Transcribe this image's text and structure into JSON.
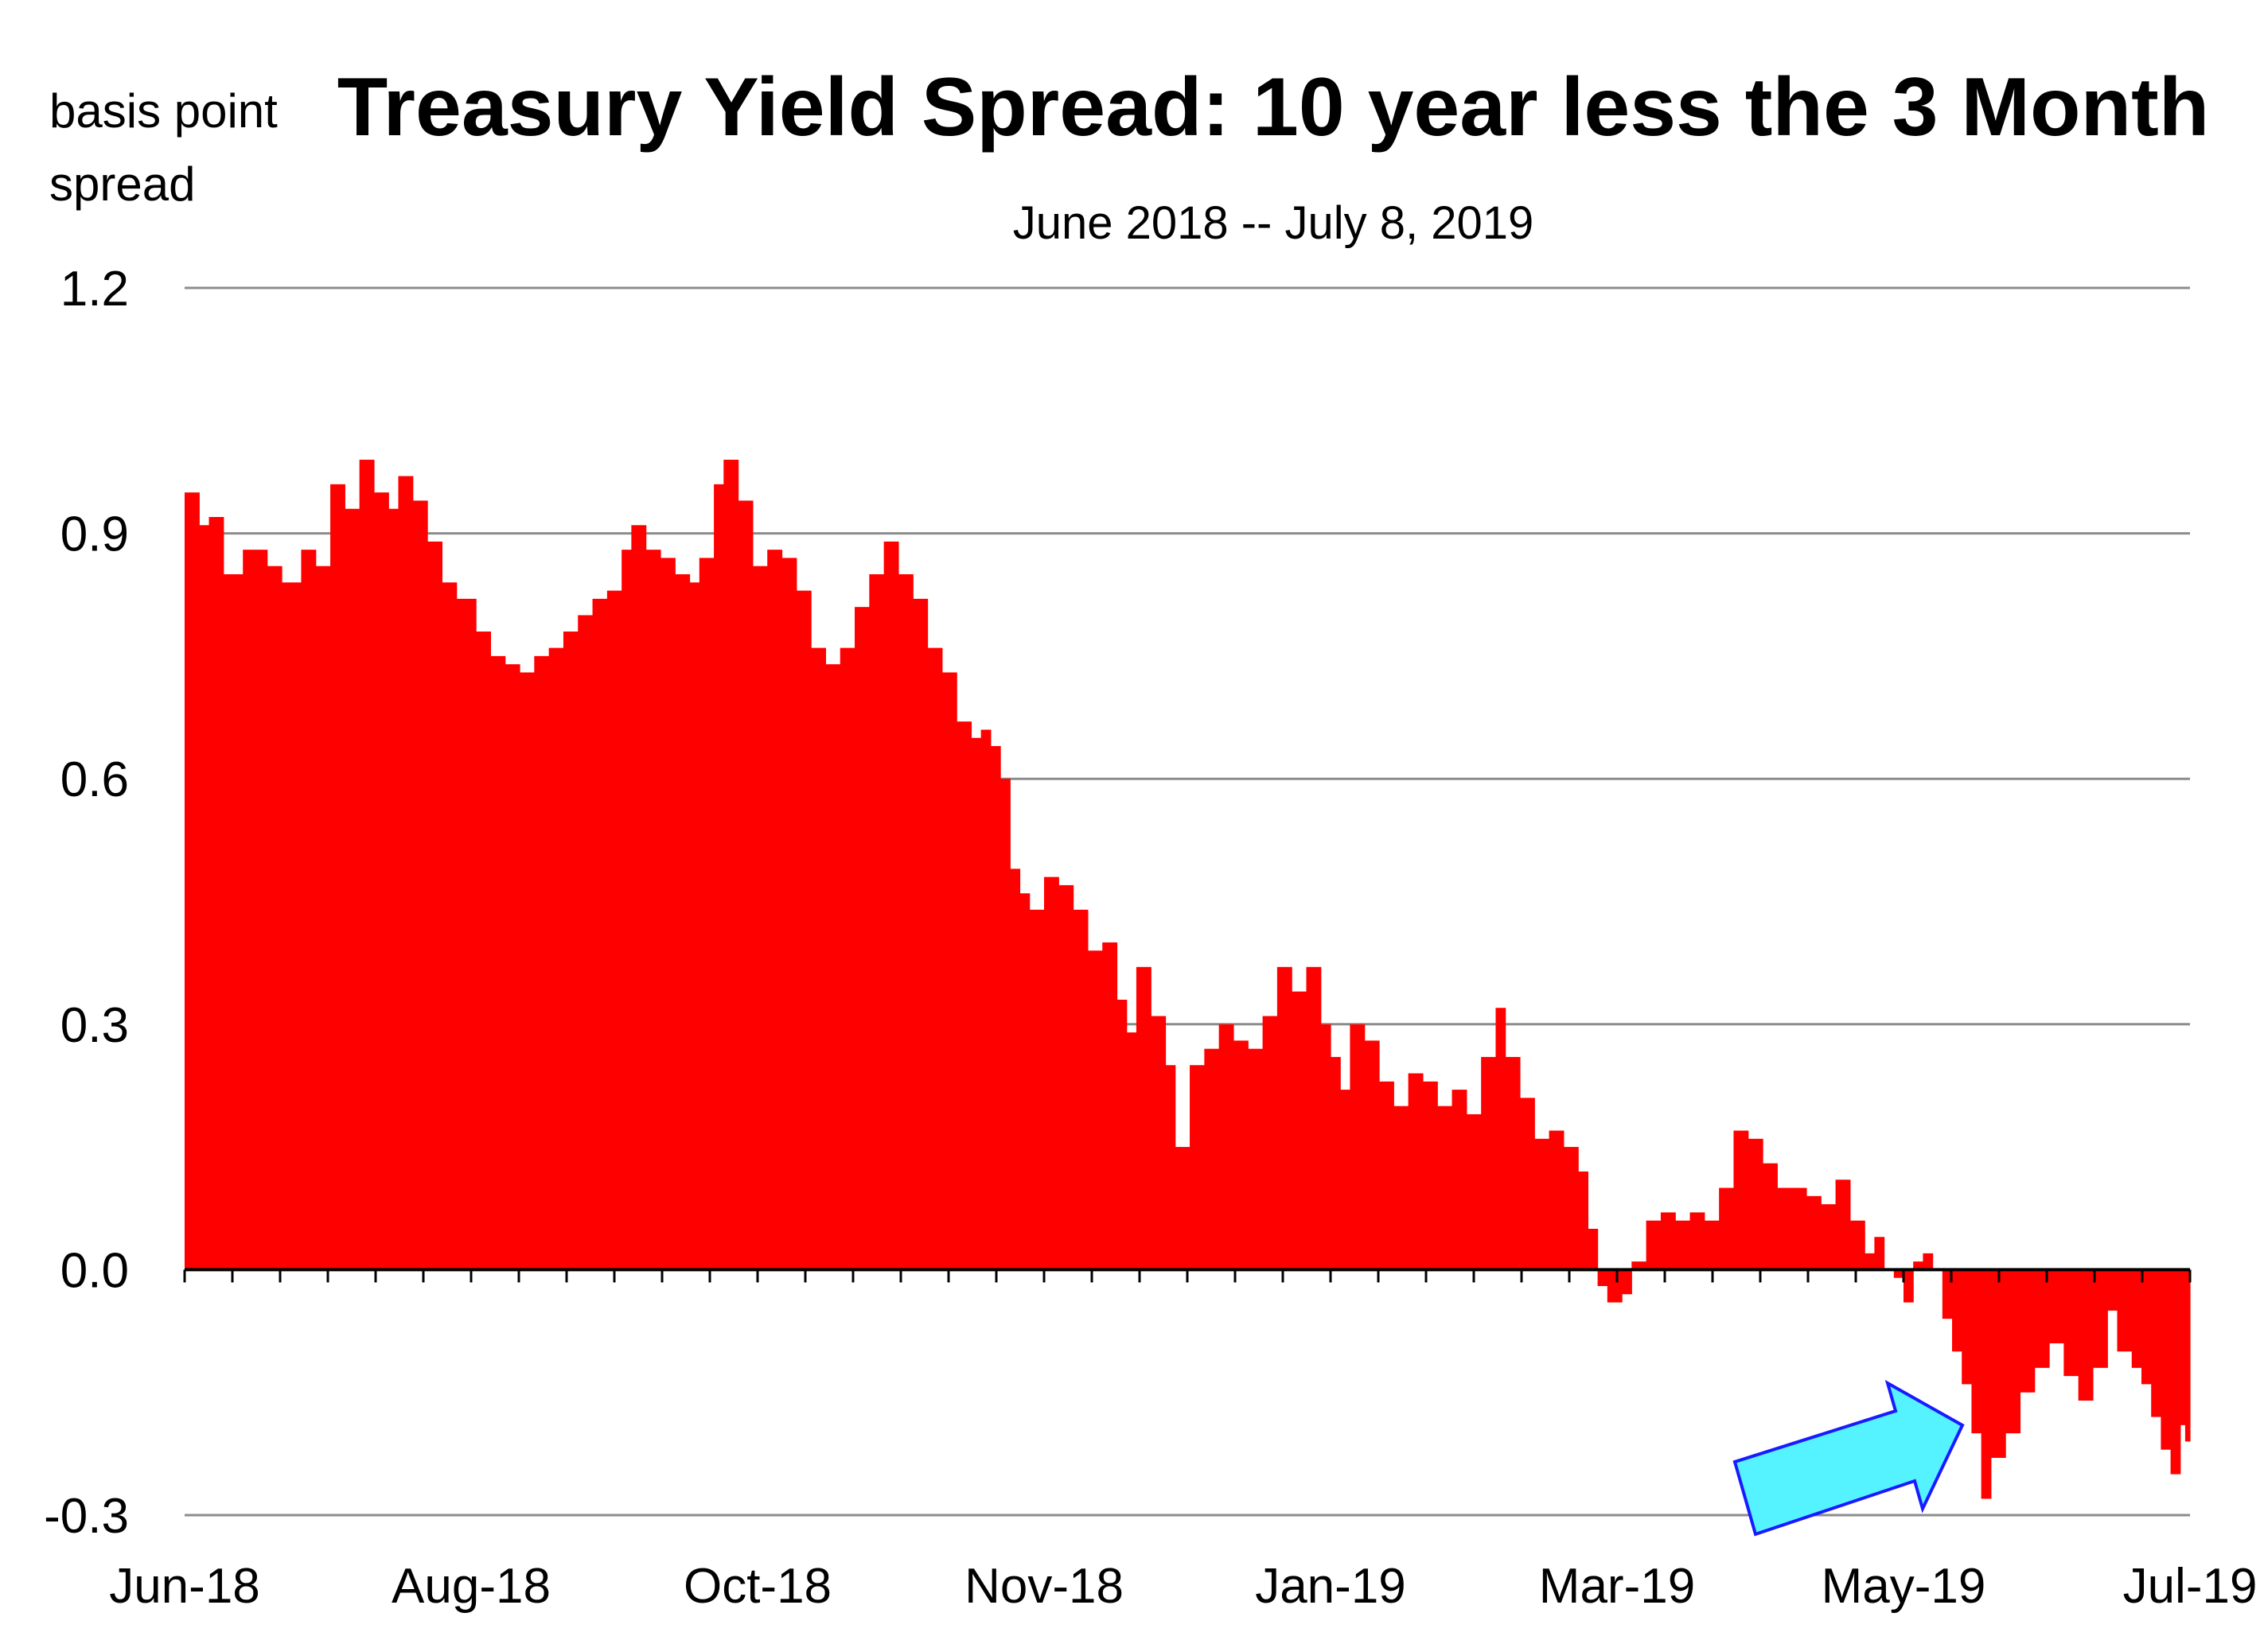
{
  "chart_data": {
    "type": "bar",
    "title": "Treasury Yield Spread: 10 year less the 3 Month",
    "subtitle": "June 2018 -- July 8, 2019",
    "ylabel_lines": [
      "basis point",
      "spread"
    ],
    "xlabel": "",
    "ylim": [
      -0.3,
      1.2
    ],
    "y_ticks": [
      1.2,
      0.9,
      0.6,
      0.3,
      0.0,
      -0.3
    ],
    "y_tick_labels": [
      "1.2",
      "0.9",
      "0.6",
      "0.3",
      "0.0",
      "-0.3"
    ],
    "x_tick_labels": [
      "Jun-18",
      "Aug-18",
      "Oct-18",
      "Nov-18",
      "Jan-19",
      "Mar-19",
      "May-19",
      "Jul-19"
    ],
    "grid": true,
    "bar_color": "#ff0000",
    "arrow_fill": "#55f2ff",
    "arrow_stroke": "#1a1aff",
    "anchors": [
      [
        0,
        0.95
      ],
      [
        3,
        0.91
      ],
      [
        5,
        0.92
      ],
      [
        8,
        0.85
      ],
      [
        12,
        0.88
      ],
      [
        17,
        0.86
      ],
      [
        20,
        0.84
      ],
      [
        24,
        0.88
      ],
      [
        27,
        0.86
      ],
      [
        30,
        0.96
      ],
      [
        33,
        0.93
      ],
      [
        36,
        0.99
      ],
      [
        39,
        0.95
      ],
      [
        42,
        0.93
      ],
      [
        44,
        0.97
      ],
      [
        47,
        0.94
      ],
      [
        50,
        0.89
      ],
      [
        53,
        0.84
      ],
      [
        56,
        0.82
      ],
      [
        60,
        0.78
      ],
      [
        63,
        0.75
      ],
      [
        66,
        0.74
      ],
      [
        69,
        0.73
      ],
      [
        72,
        0.75
      ],
      [
        75,
        0.76
      ],
      [
        78,
        0.78
      ],
      [
        81,
        0.8
      ],
      [
        84,
        0.82
      ],
      [
        87,
        0.83
      ],
      [
        90,
        0.88
      ],
      [
        92,
        0.91
      ],
      [
        95,
        0.88
      ],
      [
        98,
        0.87
      ],
      [
        101,
        0.85
      ],
      [
        104,
        0.84
      ],
      [
        106,
        0.87
      ],
      [
        109,
        0.96
      ],
      [
        111,
        0.99
      ],
      [
        114,
        0.94
      ],
      [
        117,
        0.86
      ],
      [
        120,
        0.88
      ],
      [
        123,
        0.87
      ],
      [
        126,
        0.83
      ],
      [
        129,
        0.76
      ],
      [
        132,
        0.74
      ],
      [
        135,
        0.76
      ],
      [
        138,
        0.81
      ],
      [
        141,
        0.85
      ],
      [
        144,
        0.89
      ],
      [
        147,
        0.85
      ],
      [
        150,
        0.82
      ],
      [
        153,
        0.76
      ],
      [
        156,
        0.73
      ],
      [
        159,
        0.67
      ],
      [
        162,
        0.65
      ],
      [
        164,
        0.66
      ],
      [
        166,
        0.64
      ],
      [
        168,
        0.6
      ],
      [
        170,
        0.49
      ],
      [
        172,
        0.46
      ],
      [
        174,
        0.44
      ],
      [
        177,
        0.48
      ],
      [
        180,
        0.47
      ],
      [
        183,
        0.44
      ],
      [
        186,
        0.39
      ],
      [
        189,
        0.4
      ],
      [
        192,
        0.33
      ],
      [
        194,
        0.29
      ],
      [
        196,
        0.37
      ],
      [
        199,
        0.31
      ],
      [
        202,
        0.25
      ],
      [
        204,
        0.15
      ],
      [
        207,
        0.25
      ],
      [
        210,
        0.27
      ],
      [
        213,
        0.3
      ],
      [
        216,
        0.28
      ],
      [
        219,
        0.27
      ],
      [
        222,
        0.31
      ],
      [
        225,
        0.37
      ],
      [
        228,
        0.34
      ],
      [
        231,
        0.37
      ],
      [
        234,
        0.3
      ],
      [
        236,
        0.26
      ],
      [
        238,
        0.22
      ],
      [
        240,
        0.3
      ],
      [
        243,
        0.28
      ],
      [
        246,
        0.23
      ],
      [
        249,
        0.2
      ],
      [
        252,
        0.24
      ],
      [
        255,
        0.23
      ],
      [
        258,
        0.2
      ],
      [
        261,
        0.22
      ],
      [
        264,
        0.19
      ],
      [
        267,
        0.26
      ],
      [
        270,
        0.32
      ],
      [
        272,
        0.26
      ],
      [
        275,
        0.21
      ],
      [
        278,
        0.16
      ],
      [
        281,
        0.17
      ],
      [
        284,
        0.15
      ],
      [
        287,
        0.12
      ],
      [
        289,
        0.05
      ],
      [
        291,
        -0.02
      ],
      [
        293,
        -0.04
      ],
      [
        296,
        -0.03
      ],
      [
        298,
        0.01
      ],
      [
        301,
        0.06
      ],
      [
        304,
        0.07
      ],
      [
        307,
        0.06
      ],
      [
        310,
        0.07
      ],
      [
        313,
        0.06
      ],
      [
        316,
        0.1
      ],
      [
        319,
        0.17
      ],
      [
        322,
        0.16
      ],
      [
        325,
        0.13
      ],
      [
        328,
        0.1
      ],
      [
        331,
        0.1
      ],
      [
        334,
        0.09
      ],
      [
        337,
        0.08
      ],
      [
        340,
        0.11
      ],
      [
        343,
        0.06
      ],
      [
        346,
        0.02
      ],
      [
        348,
        0.04
      ],
      [
        350,
        0.0
      ],
      [
        352,
        -0.01
      ],
      [
        354,
        -0.04
      ],
      [
        356,
        0.01
      ],
      [
        358,
        0.02
      ],
      [
        360,
        0.0
      ],
      [
        362,
        -0.06
      ],
      [
        364,
        -0.1
      ],
      [
        366,
        -0.14
      ],
      [
        368,
        -0.2
      ],
      [
        370,
        -0.28
      ],
      [
        372,
        -0.23
      ],
      [
        375,
        -0.2
      ],
      [
        378,
        -0.15
      ],
      [
        381,
        -0.12
      ],
      [
        384,
        -0.09
      ],
      [
        387,
        -0.13
      ],
      [
        390,
        -0.16
      ],
      [
        393,
        -0.12
      ],
      [
        396,
        -0.05
      ],
      [
        398,
        -0.1
      ],
      [
        401,
        -0.12
      ],
      [
        403,
        -0.14
      ],
      [
        405,
        -0.18
      ],
      [
        407,
        -0.22
      ],
      [
        409,
        -0.25
      ],
      [
        411,
        -0.19
      ],
      [
        412,
        -0.21
      ]
    ]
  }
}
